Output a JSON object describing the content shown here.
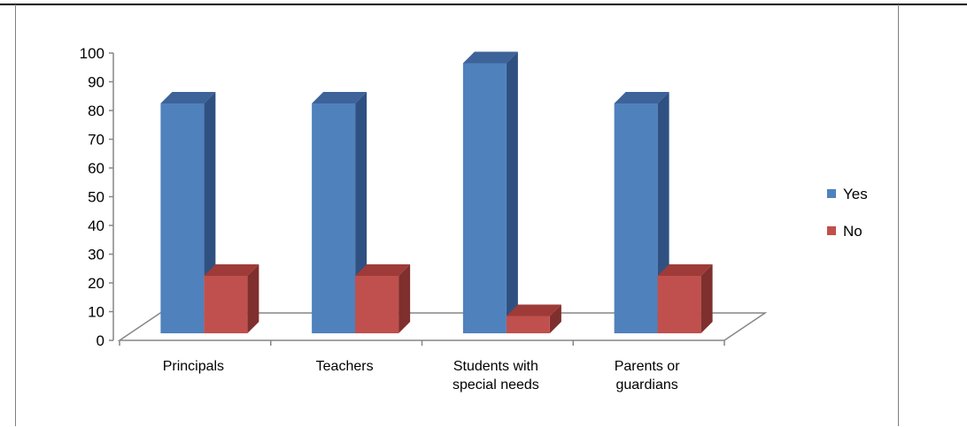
{
  "chart_data": {
    "type": "bar",
    "title": "",
    "xlabel": "",
    "ylabel": "",
    "ylim": [
      0,
      100
    ],
    "yticks": [
      0,
      10,
      20,
      30,
      40,
      50,
      60,
      70,
      80,
      90,
      100
    ],
    "categories": [
      [
        "Principals"
      ],
      [
        "Teachers"
      ],
      [
        "Students with",
        "special needs"
      ],
      [
        "Parents or",
        "guardians"
      ]
    ],
    "series": [
      {
        "name": "Yes",
        "values": [
          80,
          80,
          94,
          80
        ],
        "color": "#4F81BD",
        "side": "#2F5182",
        "top": "#3D6399"
      },
      {
        "name": "No",
        "values": [
          20,
          20,
          6,
          20
        ],
        "color": "#C0504D",
        "side": "#7F2F2D",
        "top": "#9E3B38"
      }
    ],
    "legend_position": "right",
    "grid": false,
    "style": "3d-column"
  }
}
